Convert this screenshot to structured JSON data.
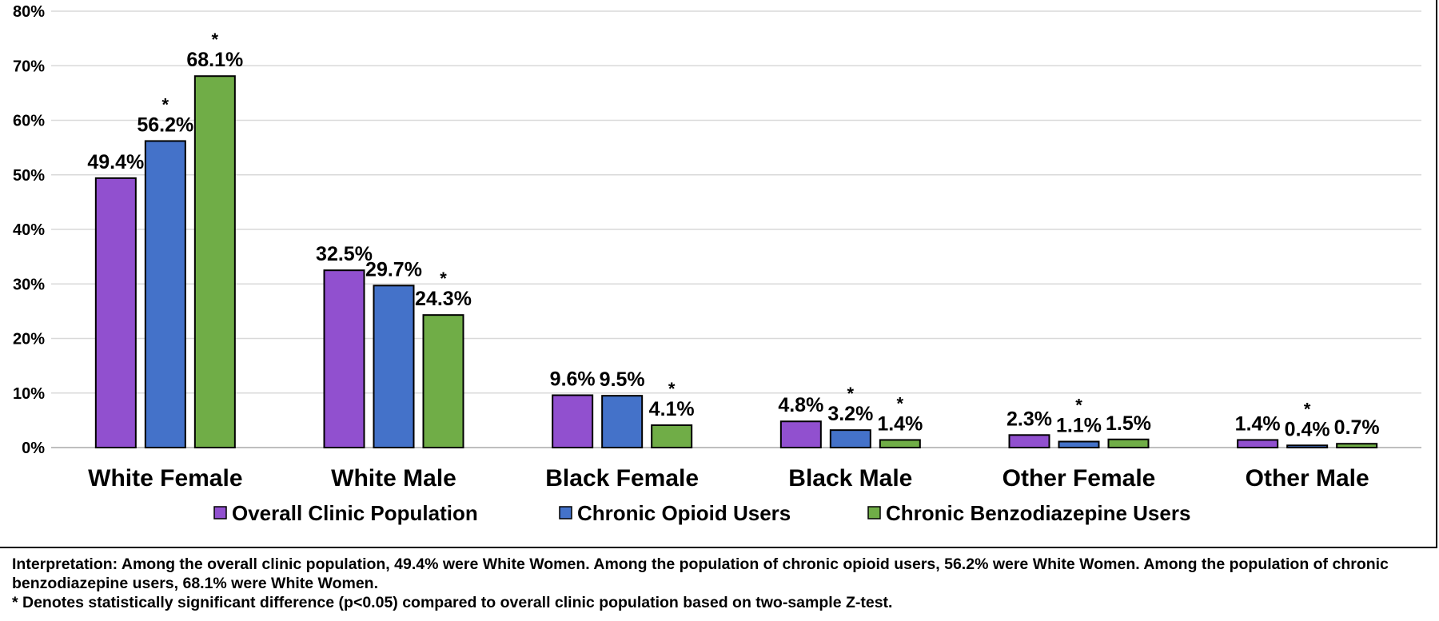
{
  "chart_data": {
    "type": "bar",
    "categories": [
      "White Female",
      "White Male",
      "Black Female",
      "Black Male",
      "Other Female",
      "Other Male"
    ],
    "ylim": [
      0,
      80
    ],
    "yticks": [
      0,
      10,
      20,
      30,
      40,
      50,
      60,
      70,
      80
    ],
    "ytick_labels": [
      "0%",
      "10%",
      "20%",
      "30%",
      "40%",
      "50%",
      "60%",
      "70%",
      "80%"
    ],
    "grid": true,
    "legend_position": "bottom",
    "series": [
      {
        "name": "Overall Clinic Population",
        "color": "#9150CF",
        "values": [
          49.4,
          32.5,
          9.6,
          4.8,
          2.3,
          1.4
        ],
        "labels": [
          "49.4%",
          "32.5%",
          "9.6%",
          "4.8%",
          "2.3%",
          "1.4%"
        ],
        "significant": [
          false,
          false,
          false,
          false,
          false,
          false
        ]
      },
      {
        "name": "Chronic Opioid Users",
        "color": "#4472C9",
        "values": [
          56.2,
          29.7,
          9.5,
          3.2,
          1.1,
          0.4
        ],
        "labels": [
          "56.2%",
          "29.7%",
          "9.5%",
          "3.2%",
          "1.1%",
          "0.4%"
        ],
        "significant": [
          true,
          false,
          false,
          true,
          true,
          true
        ]
      },
      {
        "name": "Chronic Benzodiazepine Users",
        "color": "#70AD47",
        "values": [
          68.1,
          24.3,
          4.1,
          1.4,
          1.5,
          0.7
        ],
        "labels": [
          "68.1%",
          "24.3%",
          "4.1%",
          "1.4%",
          "1.5%",
          "0.7%"
        ],
        "significant": [
          true,
          true,
          true,
          true,
          false,
          false
        ]
      }
    ],
    "significance_marker": "*"
  },
  "notes": {
    "interpretation": "Interpretation: Among the overall clinic population, 49.4% were White Women. Among the population of chronic opioid users, 56.2% were White Women. Among the population of chronic benzodiazepine users, 68.1% were White Women.",
    "footnote": "* Denotes statistically significant difference (p<0.05) compared to overall clinic population based on two-sample Z-test."
  }
}
